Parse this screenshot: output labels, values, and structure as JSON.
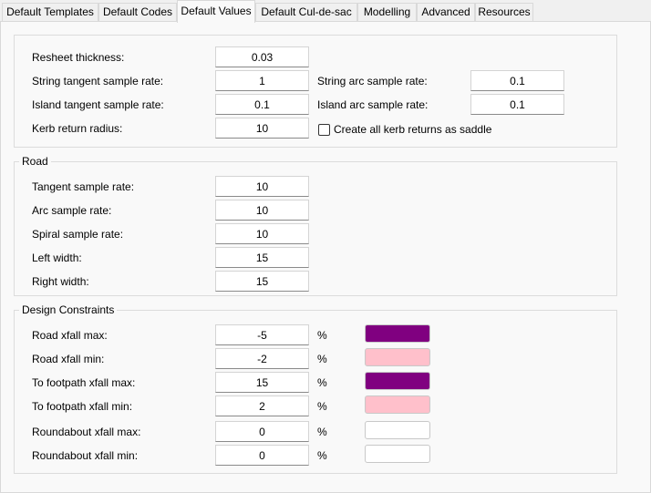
{
  "tabs": [
    "Default Templates",
    "Default Codes",
    "Default Values",
    "Default Cul-de-sac",
    "Modelling",
    "Advanced",
    "Resources"
  ],
  "active_tab": "Default Values",
  "general": {
    "resheet_label": "Resheet thickness:",
    "resheet_value": "0.03",
    "string_tangent_label": "String tangent sample rate:",
    "string_tangent_value": "1",
    "string_arc_label": "String arc sample rate:",
    "string_arc_value": "0.1",
    "island_tangent_label": "Island tangent sample rate:",
    "island_tangent_value": "0.1",
    "island_arc_label": "Island arc sample rate:",
    "island_arc_value": "0.1",
    "kerb_label": "Kerb return radius:",
    "kerb_value": "10",
    "saddle_label": "Create all kerb returns as saddle",
    "saddle_checked": false
  },
  "road": {
    "title": "Road",
    "tangent_label": "Tangent sample rate:",
    "tangent_value": "10",
    "arc_label": "Arc sample rate:",
    "arc_value": "10",
    "spiral_label": "Spiral sample rate:",
    "spiral_value": "10",
    "left_label": "Left width:",
    "left_value": "15",
    "right_label": "Right width:",
    "right_value": "15"
  },
  "design": {
    "title": "Design Constraints",
    "unit": "%",
    "rows": [
      {
        "label": "Road xfall max:",
        "value": "-5",
        "color": "#800080"
      },
      {
        "label": "Road xfall min:",
        "value": "-2",
        "color": "#ffc0cb"
      },
      {
        "label": "To footpath xfall max:",
        "value": "15",
        "color": "#800080"
      },
      {
        "label": "To footpath xfall min:",
        "value": "2",
        "color": "#ffc0cb"
      },
      {
        "label": "Roundabout xfall max:",
        "value": "0",
        "color": "#ffffff"
      },
      {
        "label": "Roundabout xfall min:",
        "value": "0",
        "color": "#ffffff"
      }
    ]
  }
}
